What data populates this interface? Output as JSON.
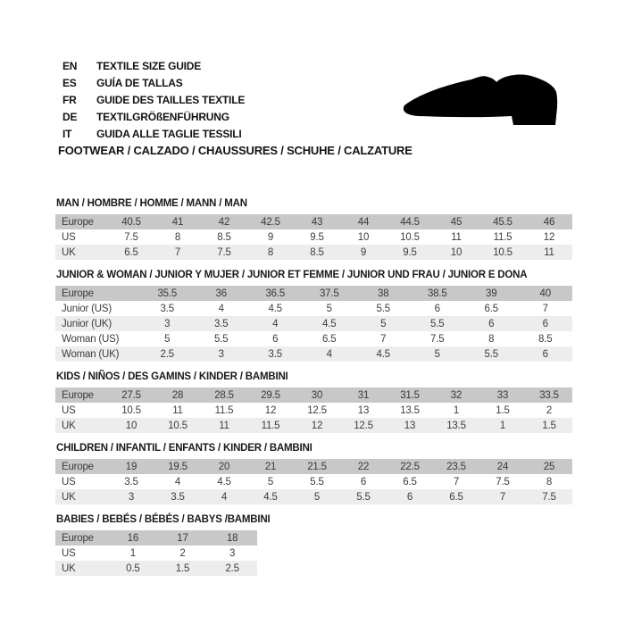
{
  "header": {
    "languages": [
      {
        "code": "EN",
        "label": "TEXTILE SIZE GUIDE"
      },
      {
        "code": "ES",
        "label": "GUÍA DE TALLAS"
      },
      {
        "code": "FR",
        "label": "GUIDE DES TAILLES TEXTILE"
      },
      {
        "code": "DE",
        "label": "TEXTILGRÖßENFÜHRUNG"
      },
      {
        "code": "IT",
        "label": "GUIDA ALLE TAGLIE TESSILI"
      }
    ],
    "category_line": "FOOTWEAR / CALZADO / CHAUSSURES / SCHUHE / CALZATURE",
    "icon": "dress-shoe-silhouette"
  },
  "colors": {
    "header_row": "#c8c8c8",
    "alt_row": "#ededed",
    "text": "#3d3d3d",
    "title": "#1a1a1a",
    "shoe": "#000000",
    "background": "#ffffff"
  },
  "tables": [
    {
      "title": "MAN / HOMBRE / HOMME / MANN / MAN",
      "rows": [
        {
          "label": "Europe",
          "values": [
            "40.5",
            "41",
            "42",
            "42.5",
            "43",
            "44",
            "44.5",
            "45",
            "45.5",
            "46"
          ]
        },
        {
          "label": "US",
          "values": [
            "7.5",
            "8",
            "8.5",
            "9",
            "9.5",
            "10",
            "10.5",
            "11",
            "11.5",
            "12"
          ]
        },
        {
          "label": "UK",
          "values": [
            "6.5",
            "7",
            "7.5",
            "8",
            "8.5",
            "9",
            "9.5",
            "10",
            "10.5",
            "11"
          ]
        }
      ]
    },
    {
      "title": "JUNIOR & WOMAN / JUNIOR Y MUJER / JUNIOR ET FEMME / JUNIOR UND FRAU / JUNIOR E DONA",
      "rows": [
        {
          "label": "Europe",
          "values": [
            "35.5",
            "36",
            "36.5",
            "37.5",
            "38",
            "38.5",
            "39",
            "40"
          ]
        },
        {
          "label": "Junior (US)",
          "values": [
            "3.5",
            "4",
            "4.5",
            "5",
            "5.5",
            "6",
            "6.5",
            "7"
          ]
        },
        {
          "label": "Junior (UK)",
          "values": [
            "3",
            "3.5",
            "4",
            "4.5",
            "5",
            "5.5",
            "6",
            "6"
          ]
        },
        {
          "label": "Woman (US)",
          "values": [
            "5",
            "5.5",
            "6",
            "6.5",
            "7",
            "7.5",
            "8",
            "8.5"
          ]
        },
        {
          "label": "Woman (UK)",
          "values": [
            "2.5",
            "3",
            "3.5",
            "4",
            "4.5",
            "5",
            "5.5",
            "6"
          ]
        }
      ]
    },
    {
      "title": "KIDS / NIÑOS / DES GAMINS / KINDER / BAMBINI",
      "rows": [
        {
          "label": "Europe",
          "values": [
            "27.5",
            "28",
            "28.5",
            "29.5",
            "30",
            "31",
            "31.5",
            "32",
            "33",
            "33.5"
          ]
        },
        {
          "label": "US",
          "values": [
            "10.5",
            "11",
            "11.5",
            "12",
            "12.5",
            "13",
            "13.5",
            "1",
            "1.5",
            "2"
          ]
        },
        {
          "label": "UK",
          "values": [
            "10",
            "10.5",
            "11",
            "11.5",
            "12",
            "12.5",
            "13",
            "13.5",
            "1",
            "1.5"
          ]
        }
      ]
    },
    {
      "title": "CHILDREN / INFANTIL / ENFANTS / KINDER / BAMBINI",
      "rows": [
        {
          "label": "Europe",
          "values": [
            "19",
            "19.5",
            "20",
            "21",
            "21.5",
            "22",
            "22.5",
            "23.5",
            "24",
            "25"
          ]
        },
        {
          "label": "US",
          "values": [
            "3.5",
            "4",
            "4.5",
            "5",
            "5.5",
            "6",
            "6.5",
            "7",
            "7.5",
            "8"
          ]
        },
        {
          "label": "UK",
          "values": [
            "3",
            "3.5",
            "4",
            "4.5",
            "5",
            "5.5",
            "6",
            "6.5",
            "7",
            "7.5"
          ]
        }
      ]
    },
    {
      "title": "BABIES / BEBÉS / BÉBÉS / BABYS /BAMBINI",
      "rows": [
        {
          "label": "Europe",
          "values": [
            "16",
            "17",
            "18"
          ]
        },
        {
          "label": "US",
          "values": [
            "1",
            "2",
            "3"
          ]
        },
        {
          "label": "UK",
          "values": [
            "0.5",
            "1.5",
            "2.5"
          ]
        }
      ]
    }
  ]
}
